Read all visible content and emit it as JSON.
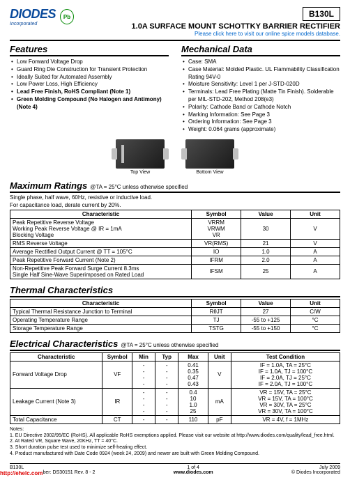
{
  "header": {
    "logo_text": "DIODES",
    "logo_sub": "Incorporated",
    "pb_label": "Pb",
    "part": "B130L",
    "title": "1.0A SURFACE MOUNT SCHOTTKY BARRIER RECTIFIER",
    "link": "Please click here to visit our online spice models database."
  },
  "features": {
    "heading": "Features",
    "items": [
      {
        "t": "Low Forward Voltage Drop",
        "b": false
      },
      {
        "t": "Guard Ring Die Construction for Transient Protection",
        "b": false
      },
      {
        "t": "Ideally Suited for Automated Assembly",
        "b": false
      },
      {
        "t": "Low Power Loss, High Efficiency",
        "b": false
      },
      {
        "t": "Lead Free Finish, RoHS Compliant (Note 1)",
        "b": true
      },
      {
        "t": "Green Molding Compound (No Halogen and Antimony) (Note 4)",
        "b": true
      }
    ]
  },
  "mechanical": {
    "heading": "Mechanical Data",
    "items": [
      "Case: SMA",
      "Case Material: Molded Plastic.  UL Flammability Classification Rating 94V-0",
      "Moisture Sensitivity:  Level 1 per J-STD-020D",
      "Terminals: Lead Free Plating (Matte Tin Finish). Solderable per MIL-STD-202, Method 208(e3)",
      "Polarity: Cathode Band or Cathode Notch",
      "Marking Information: See Page 3",
      "Ordering Information: See Page 3",
      "Weight: 0.064 grams (approximate)"
    ]
  },
  "chips": {
    "top": "Top View",
    "bottom": "Bottom View"
  },
  "max": {
    "heading": "Maximum Ratings",
    "heading_sub": "@TA = 25°C unless otherwise specified",
    "note1": "Single phase, half wave, 60Hz, resistive or inductive load.",
    "note2": "For capacitance load, derate current by 20%.",
    "cols": [
      "Characteristic",
      "Symbol",
      "Value",
      "Unit"
    ],
    "rows": [
      {
        "c": "Peak Repetitive Reverse Voltage\nWorking Peak Reverse Voltage                    @ IR = 1mA\nBlocking Voltage",
        "s": "VRRM\nVRWM\nVR",
        "v": "30",
        "u": "V"
      },
      {
        "c": "RMS Reverse Voltage",
        "s": "VR(RMS)",
        "v": "21",
        "u": "V"
      },
      {
        "c": "Average Rectified Output Current                    @ TT = 105°C",
        "s": "IO",
        "v": "1.0",
        "u": "A"
      },
      {
        "c": "Peak Repetitive Forward Current (Note 2)",
        "s": "IFRM",
        "v": "2.0",
        "u": "A"
      },
      {
        "c": "Non-Repetitive Peak Forward Surge Current 8.3ms\nSingle Half Sine-Wave Superimposed on Rated Load",
        "s": "IFSM",
        "v": "25",
        "u": "A"
      }
    ]
  },
  "thermal": {
    "heading": "Thermal Characteristics",
    "cols": [
      "Characteristic",
      "Symbol",
      "Value",
      "Unit"
    ],
    "rows": [
      {
        "c": "Typical Thermal Resistance Junction to Terminal",
        "s": "RθJT",
        "v": "27",
        "u": "C/W"
      },
      {
        "c": "Operating Temperature Range",
        "s": "TJ",
        "v": "-55 to +125",
        "u": "°C"
      },
      {
        "c": "Storage Temperature Range",
        "s": "TSTG",
        "v": "-55 to +150",
        "u": "°C"
      }
    ]
  },
  "elec": {
    "heading": "Electrical Characteristics",
    "heading_sub": "@TA = 25°C unless otherwise specified",
    "cols": [
      "Characteristic",
      "Symbol",
      "Min",
      "Typ",
      "Max",
      "Unit",
      "Test Condition"
    ],
    "rows": [
      {
        "c": "Forward Voltage Drop",
        "s": "VF",
        "min": "-\n-\n-\n-",
        "typ": "-\n-\n-\n-",
        "max": "0.41\n0.35\n0.47\n0.43",
        "u": "V",
        "tc": "IF = 1.0A, TA = 25°C\nIF = 1.0A, TJ = 100°C\nIF = 2.0A, TJ = 25°C\nIF = 2.0A, TJ = 100°C"
      },
      {
        "c": "Leakage Current (Note 3)",
        "s": "IR",
        "min": "-\n-\n-\n-",
        "typ": "-\n-\n-\n-",
        "max": "0.4\n10\n1.0\n25",
        "u": "mA",
        "tc": "VR = 15V, TA = 25°C\nVR = 15V, TA = 100°C\nVR = 30V, TA = 25°C\nVR = 30V, TA = 100°C"
      },
      {
        "c": "Total Capacitance",
        "s": "CT",
        "min": "-",
        "typ": "-",
        "max": "110",
        "u": "pF",
        "tc": "VR = 4V, f = 1MHz"
      }
    ]
  },
  "notes": {
    "label": "Notes:",
    "items": [
      "1.  EU Directive 2002/95/EC (RoHS). All applicable RoHS exemptions applied. Please visit our website at http://www.diodes.com/quality/lead_free.html.",
      "2.  At Rated VR, Square Wave, 20KHz, TT = 40°C.",
      "3.  Short duration pulse test used to minimize self-heating effect.",
      "4.  Product manufactured with Date Code 0924 (week 24, 2009) and newer are built with Green Molding Compound."
    ]
  },
  "footer": {
    "left1": "B130L",
    "left2": "Document number: DS30151 Rev. 8 - 2",
    "center1": "1 of 4",
    "center2": "www.diodes.com",
    "right1": "July 2009",
    "right2": "© Diodes Incorporated",
    "redtag": "http://ehelc.com"
  }
}
